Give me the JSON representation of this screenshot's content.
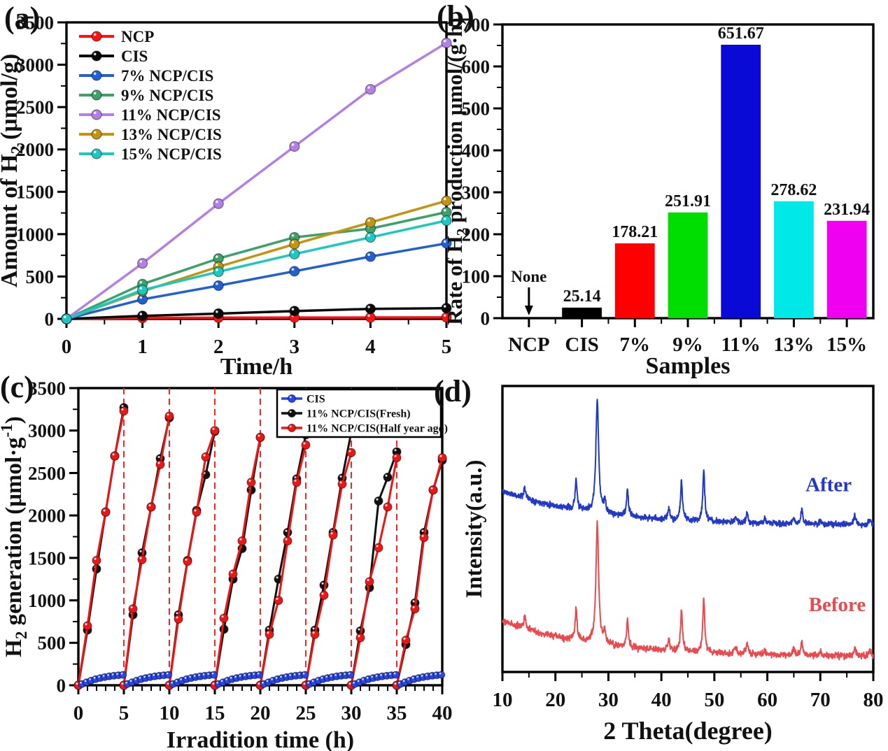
{
  "panel_labels": {
    "a": "(a)",
    "b": "(b)",
    "c": "(c)",
    "d": "(d)"
  },
  "chart_data": [
    {
      "panel": "a",
      "type": "line",
      "xlabel": "Time/h",
      "ylabel_parts": [
        {
          "t": "Amount of H"
        },
        {
          "t": "2",
          "sub": true
        },
        {
          "t": " (μmol/g)"
        }
      ],
      "xlim": [
        0,
        5
      ],
      "ylim": [
        0,
        3500
      ],
      "xticks": [
        0,
        1,
        2,
        3,
        4,
        5
      ],
      "yticks": [
        0,
        500,
        1000,
        1500,
        2000,
        2500,
        3000,
        3500
      ],
      "x_minor_step": 0.5,
      "y_minor_step": 250,
      "grid": false,
      "legend_position": "top-left",
      "x": [
        0,
        1,
        2,
        3,
        4,
        5
      ],
      "series": [
        {
          "name": "NCP",
          "color": "#ff1111",
          "values": [
            0,
            10,
            13,
            15,
            16,
            18
          ]
        },
        {
          "name": "CIS",
          "color": "#0a0a0a",
          "values": [
            0,
            35,
            62,
            92,
            118,
            126
          ]
        },
        {
          "name": "7% NCP/CIS",
          "color": "#2060d4",
          "values": [
            0,
            230,
            392,
            562,
            735,
            891
          ]
        },
        {
          "name": "9% NCP/CIS",
          "color": "#3ba26b",
          "values": [
            0,
            410,
            712,
            962,
            1065,
            1260
          ]
        },
        {
          "name": "11% NCP/CIS",
          "color": "#b47fe6",
          "values": [
            0,
            655,
            1360,
            2035,
            2710,
            3258
          ]
        },
        {
          "name": "13% NCP/CIS",
          "color": "#c4940f",
          "values": [
            0,
            325,
            615,
            882,
            1138,
            1393
          ]
        },
        {
          "name": "15% NCP/CIS",
          "color": "#1cc8c0",
          "values": [
            0,
            340,
            556,
            765,
            962,
            1160
          ]
        }
      ]
    },
    {
      "panel": "b",
      "type": "bar",
      "xlabel": "Samples",
      "ylabel_parts": [
        {
          "t": "Rate of H"
        },
        {
          "t": "2",
          "sub": true
        },
        {
          "t": " production μmol/(g·h)"
        }
      ],
      "ylim": [
        0,
        700
      ],
      "yticks": [
        0,
        100,
        200,
        300,
        400,
        500,
        600,
        700
      ],
      "y_minor_step": 50,
      "grid": false,
      "categories": [
        "NCP",
        "CIS",
        "7%",
        "9%",
        "11%",
        "13%",
        "15%"
      ],
      "values": [
        0,
        25.14,
        178.21,
        251.91,
        651.67,
        278.62,
        231.94
      ],
      "value_labels": [
        "",
        "25.14",
        "178.21",
        "251.91",
        "651.67",
        "278.62",
        "231.94"
      ],
      "bar_colors": [
        "#000000",
        "#000000",
        "#ff0000",
        "#00dd00",
        "#0a0ad6",
        "#00e8e8",
        "#f000f0"
      ],
      "annotation": {
        "text": "None",
        "category_index": 0,
        "arrow": "down"
      }
    },
    {
      "panel": "c",
      "type": "line-cycles",
      "xlabel": "Irradition time (h)",
      "ylabel_parts": [
        {
          "t": "H"
        },
        {
          "t": "2",
          "sub": true
        },
        {
          "t": " generation (μmol·g"
        },
        {
          "t": "-1",
          "sup": true
        },
        {
          "t": ")"
        }
      ],
      "xlim": [
        0,
        40
      ],
      "ylim": [
        0,
        3500
      ],
      "xticks": [
        0,
        5,
        10,
        15,
        20,
        25,
        30,
        35,
        40
      ],
      "yticks": [
        0,
        500,
        1000,
        1500,
        2000,
        2500,
        3000,
        3500
      ],
      "x_minor_step": 1,
      "y_minor_step": 250,
      "grid": false,
      "legend_position": "top-right",
      "dashed_lines_x": [
        5,
        10,
        15,
        20,
        25,
        30,
        35
      ],
      "dashed_color": "#ff2222",
      "cycle_starts": [
        0,
        5,
        10,
        15,
        20,
        25,
        30,
        35
      ],
      "cycle_x": [
        0,
        1,
        2,
        3,
        4,
        5
      ],
      "series": [
        {
          "name": "CIS",
          "color": "#2847ea",
          "kind": "profile",
          "profile_x": [
            0.4,
            0.9,
            1.4,
            1.9,
            2.4,
            2.9,
            3.4,
            3.9,
            4.4,
            4.9
          ],
          "profile_y": [
            15,
            35,
            55,
            72,
            85,
            96,
            105,
            112,
            118,
            123
          ]
        },
        {
          "name": "11% NCP/CIS(Fresh)",
          "color": "#111111",
          "kind": "cycles",
          "cycles": [
            [
              0,
              650,
              1370,
              2040,
              2700,
              3270
            ],
            [
              0,
              830,
              1560,
              2100,
              2670,
              3150
            ],
            [
              0,
              830,
              1470,
              2060,
              2480,
              2990
            ],
            [
              0,
              660,
              1250,
              1610,
              2300,
              2920
            ],
            [
              0,
              650,
              1250,
              1800,
              2430,
              2950
            ],
            [
              0,
              650,
              1180,
              1800,
              2440,
              2980
            ],
            [
              0,
              640,
              1150,
              2170,
              2450,
              2750
            ],
            [
              0,
              480,
              970,
              1800,
              2300,
              2650
            ]
          ]
        },
        {
          "name": "11% NCP/CIS(Half year ago)",
          "color": "#ee1515",
          "kind": "cycles",
          "cycles": [
            [
              0,
              700,
              1470,
              2040,
              2700,
              3230
            ],
            [
              0,
              900,
              1480,
              2100,
              2600,
              3170
            ],
            [
              0,
              780,
              1460,
              2040,
              2690,
              3000
            ],
            [
              0,
              790,
              1310,
              1700,
              2390,
              2920
            ],
            [
              0,
              600,
              1000,
              1700,
              2390,
              2830
            ],
            [
              0,
              600,
              1060,
              1770,
              2370,
              2740
            ],
            [
              0,
              560,
              1220,
              1620,
              2100,
              2680
            ],
            [
              0,
              530,
              900,
              1740,
              2300,
              2680
            ]
          ]
        }
      ]
    },
    {
      "panel": "d",
      "type": "xrd",
      "xlabel": "2 Theta(degree)",
      "ylabel_parts": [
        {
          "t": "Intensity(a.u.)"
        }
      ],
      "xlim": [
        10,
        80
      ],
      "xticks": [
        10,
        20,
        30,
        40,
        50,
        60,
        70,
        80
      ],
      "x_minor_step": 5,
      "grid": false,
      "peaks": [
        [
          14.2,
          0.1
        ],
        [
          23.9,
          0.26
        ],
        [
          27.9,
          1.0
        ],
        [
          29.3,
          0.1
        ],
        [
          33.6,
          0.22
        ],
        [
          41.4,
          0.09
        ],
        [
          43.8,
          0.34
        ],
        [
          48.0,
          0.45
        ],
        [
          54.0,
          0.05
        ],
        [
          56.2,
          0.09
        ],
        [
          59.5,
          0.04
        ],
        [
          65.0,
          0.05
        ],
        [
          66.5,
          0.12
        ],
        [
          70.0,
          0.04
        ],
        [
          76.5,
          0.08
        ],
        [
          79.3,
          0.05
        ]
      ],
      "background": {
        "amp": 0.3,
        "decay": 18,
        "floor": 0.03
      },
      "noise": 0.013,
      "traces": [
        {
          "name": "After",
          "color": "#2238c8",
          "baseline_frac": 0.5,
          "scale_frac": 0.4,
          "seed": 11,
          "label_x": 67.2,
          "label_v": 0.33
        },
        {
          "name": "Before",
          "color": "#ea4a4e",
          "baseline_frac": 0.96,
          "scale_frac": 0.42,
          "seed": 97,
          "label_x": 67.8,
          "label_v": 0.41
        }
      ]
    }
  ]
}
